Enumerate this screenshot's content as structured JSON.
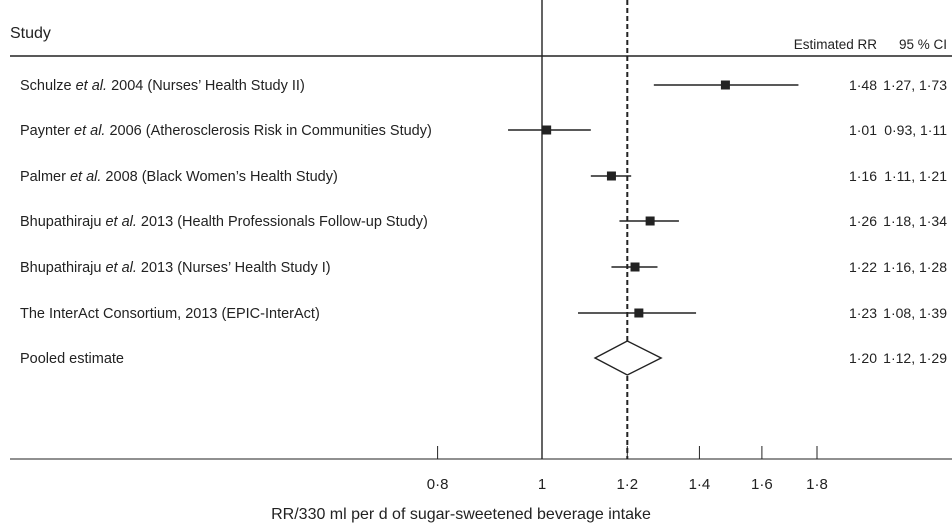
{
  "chart_data": {
    "type": "forest",
    "header": {
      "study": "Study",
      "estimate": "Estimated RR",
      "ci": "95 % CI"
    },
    "xlabel": "RR/330 ml per d of sugar-sweetened beverage intake",
    "x_scale": "log",
    "x_ticks": [
      "0·8",
      "1",
      "1·2",
      "1·4",
      "1·6",
      "1·8"
    ],
    "x_tick_values": [
      0.8,
      1.0,
      1.2,
      1.4,
      1.6,
      1.8
    ],
    "x_range": [
      0.8,
      1.8
    ],
    "reference_line": 1.0,
    "pooled_line": 1.2,
    "studies": [
      {
        "author": "Schulze",
        "rest": " 2004 (Nurses’ Health Study II)",
        "rr": 1.48,
        "lo": 1.27,
        "hi": 1.73,
        "rr_text": "1·48",
        "ci_text": "1·27, 1·73"
      },
      {
        "author": "Paynter",
        "rest": " 2006 (Atherosclerosis Risk in Communities Study)",
        "rr": 1.01,
        "lo": 0.93,
        "hi": 1.11,
        "rr_text": "1·01",
        "ci_text": "0·93, 1·11"
      },
      {
        "author": "Palmer",
        "rest": " 2008 (Black Women’s Health Study)",
        "rr": 1.16,
        "lo": 1.11,
        "hi": 1.21,
        "rr_text": "1·16",
        "ci_text": "1·11, 1·21"
      },
      {
        "author": "Bhupathiraju",
        "rest": " 2013 (Health Professionals Follow-up Study)",
        "rr": 1.26,
        "lo": 1.18,
        "hi": 1.34,
        "rr_text": "1·26",
        "ci_text": "1·18, 1·34"
      },
      {
        "author": "Bhupathiraju",
        "rest": " 2013 (Nurses’ Health Study I)",
        "rr": 1.22,
        "lo": 1.16,
        "hi": 1.28,
        "rr_text": "1·22",
        "ci_text": "1·16, 1·28"
      },
      {
        "author": "",
        "rest": "The InterAct Consortium, 2013 (EPIC-InterAct)",
        "rr": 1.23,
        "lo": 1.08,
        "hi": 1.39,
        "rr_text": "1·23",
        "ci_text": "1·08, 1·39"
      }
    ],
    "et_al": " et al.",
    "pooled": {
      "label": "Pooled estimate",
      "rr": 1.2,
      "lo": 1.12,
      "hi": 1.29,
      "rr_text": "1·20",
      "ci_text": "1·12, 1·29"
    }
  }
}
